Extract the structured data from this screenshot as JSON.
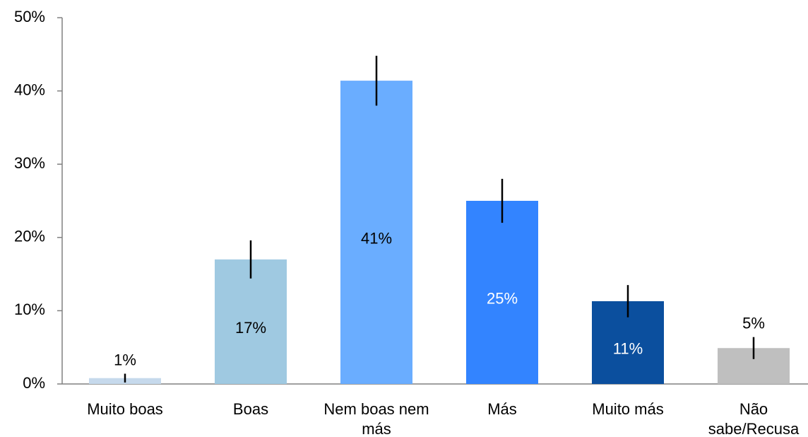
{
  "chart_data": {
    "type": "bar",
    "categories": [
      "Muito boas",
      "Boas",
      "Nem boas nem más",
      "Más",
      "Muito más",
      "Não sabe/Recusa"
    ],
    "values": [
      0.8,
      17,
      41.4,
      25,
      11.3,
      4.9
    ],
    "value_labels": [
      "1%",
      "17%",
      "41%",
      "25%",
      "11%",
      "5%"
    ],
    "errors": [
      0.6,
      2.6,
      3.4,
      3,
      2.2,
      1.5
    ],
    "colors": [
      "#c6d9ec",
      "#9fc9e1",
      "#6aadff",
      "#3384ff",
      "#0b4f9e",
      "#bfbfbf"
    ],
    "label_colors": [
      "#000000",
      "#000000",
      "#000000",
      "#ffffff",
      "#ffffff",
      "#000000"
    ],
    "ylim": [
      0,
      50
    ],
    "yticks": [
      {
        "value": 0,
        "label": "0%"
      },
      {
        "value": 10,
        "label": "10%"
      },
      {
        "value": 20,
        "label": "20%"
      },
      {
        "value": 30,
        "label": "30%"
      },
      {
        "value": 40,
        "label": "40%"
      },
      {
        "value": 50,
        "label": "50%"
      }
    ],
    "grid": false
  }
}
